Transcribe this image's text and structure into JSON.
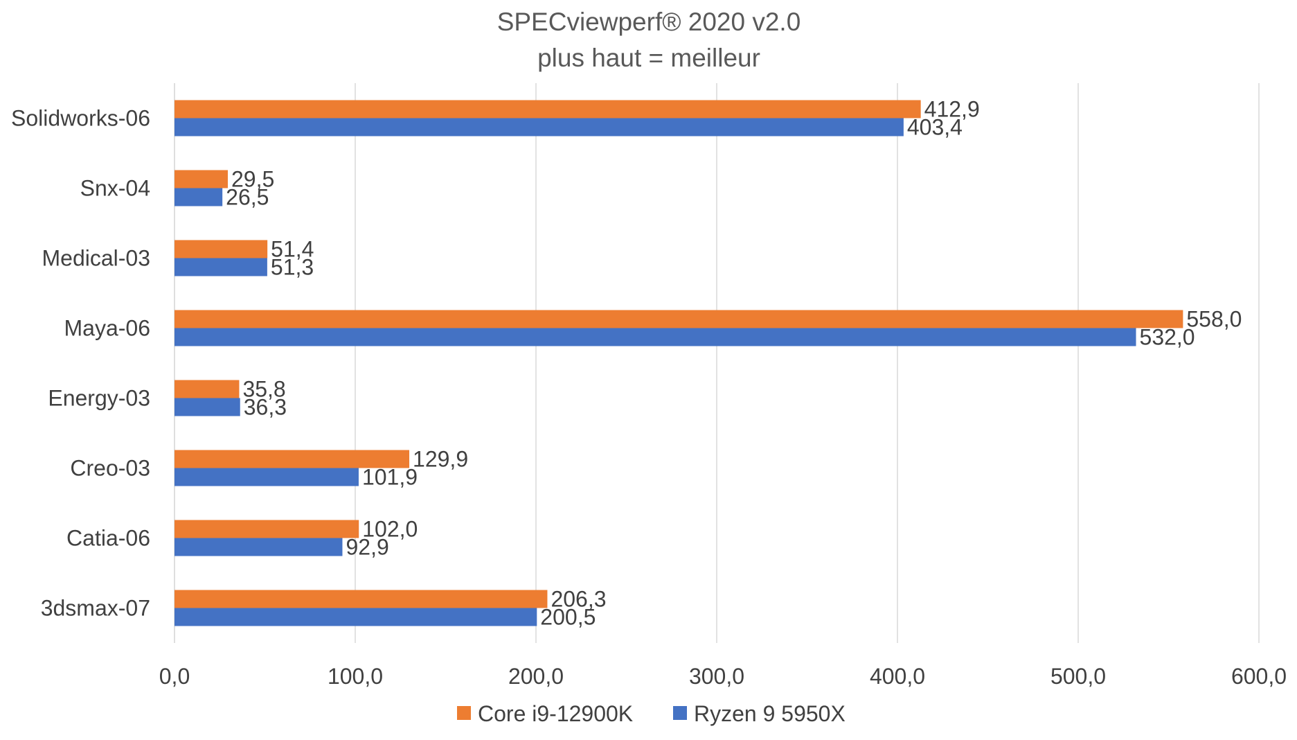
{
  "chart_data": {
    "type": "bar",
    "orientation": "horizontal",
    "title": "SPECviewperf® 2020 v2.0",
    "subtitle": "plus haut = meilleur",
    "xlabel": "",
    "ylabel": "",
    "xlim": [
      0,
      600
    ],
    "x_ticks": [
      "0,0",
      "100,0",
      "200,0",
      "300,0",
      "400,0",
      "500,0",
      "600,0"
    ],
    "grid": true,
    "legend_position": "bottom",
    "categories": [
      "Solidworks-06",
      "Snx-04",
      "Medical-03",
      "Maya-06",
      "Energy-03",
      "Creo-03",
      "Catia-06",
      "3dsmax-07"
    ],
    "series": [
      {
        "name": "Core i9-12900K",
        "color": "#ED7D31",
        "values": [
          412.9,
          29.5,
          51.4,
          558.0,
          35.8,
          129.9,
          102.0,
          206.3
        ],
        "labels": [
          "412,9",
          "29,5",
          "51,4",
          "558,0",
          "35,8",
          "129,9",
          "102,0",
          "206,3"
        ]
      },
      {
        "name": "Ryzen 9 5950X",
        "color": "#4472C4",
        "values": [
          403.4,
          26.5,
          51.3,
          532.0,
          36.3,
          101.9,
          92.9,
          200.5
        ],
        "labels": [
          "403,4",
          "26,5",
          "51,3",
          "532,0",
          "36,3",
          "101,9",
          "92,9",
          "200,5"
        ]
      }
    ]
  }
}
